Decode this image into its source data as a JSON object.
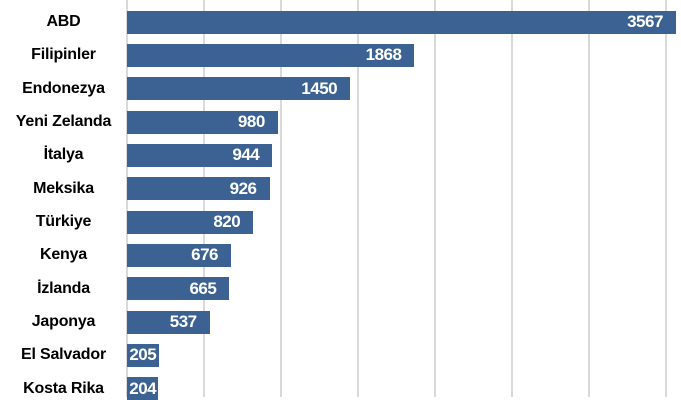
{
  "chart_data": {
    "type": "bar",
    "orientation": "horizontal",
    "title": "",
    "xlabel": "",
    "ylabel": "",
    "categories": [
      "ABD",
      "Filipinler",
      "Endonezya",
      "Yeni Zelanda",
      "İtalya",
      "Meksika",
      "Türkiye",
      "Kenya",
      "İzlanda",
      "Japonya",
      "El Salvador",
      "Kosta Rika"
    ],
    "values": [
      3567,
      1868,
      1450,
      980,
      944,
      926,
      820,
      676,
      665,
      537,
      205,
      204
    ],
    "xlim": [
      0,
      3600
    ],
    "gridlines": [
      0,
      500,
      1000,
      1500,
      2000,
      2500,
      3000,
      3500
    ],
    "grid": "vertical-only",
    "legend": "none",
    "value_labels": "inside-end",
    "colors": {
      "bar": "#3b6292",
      "value_text": "#ffffff",
      "category_text": "#000000",
      "gridline": "#d9d9d9",
      "background": "#ffffff"
    }
  }
}
